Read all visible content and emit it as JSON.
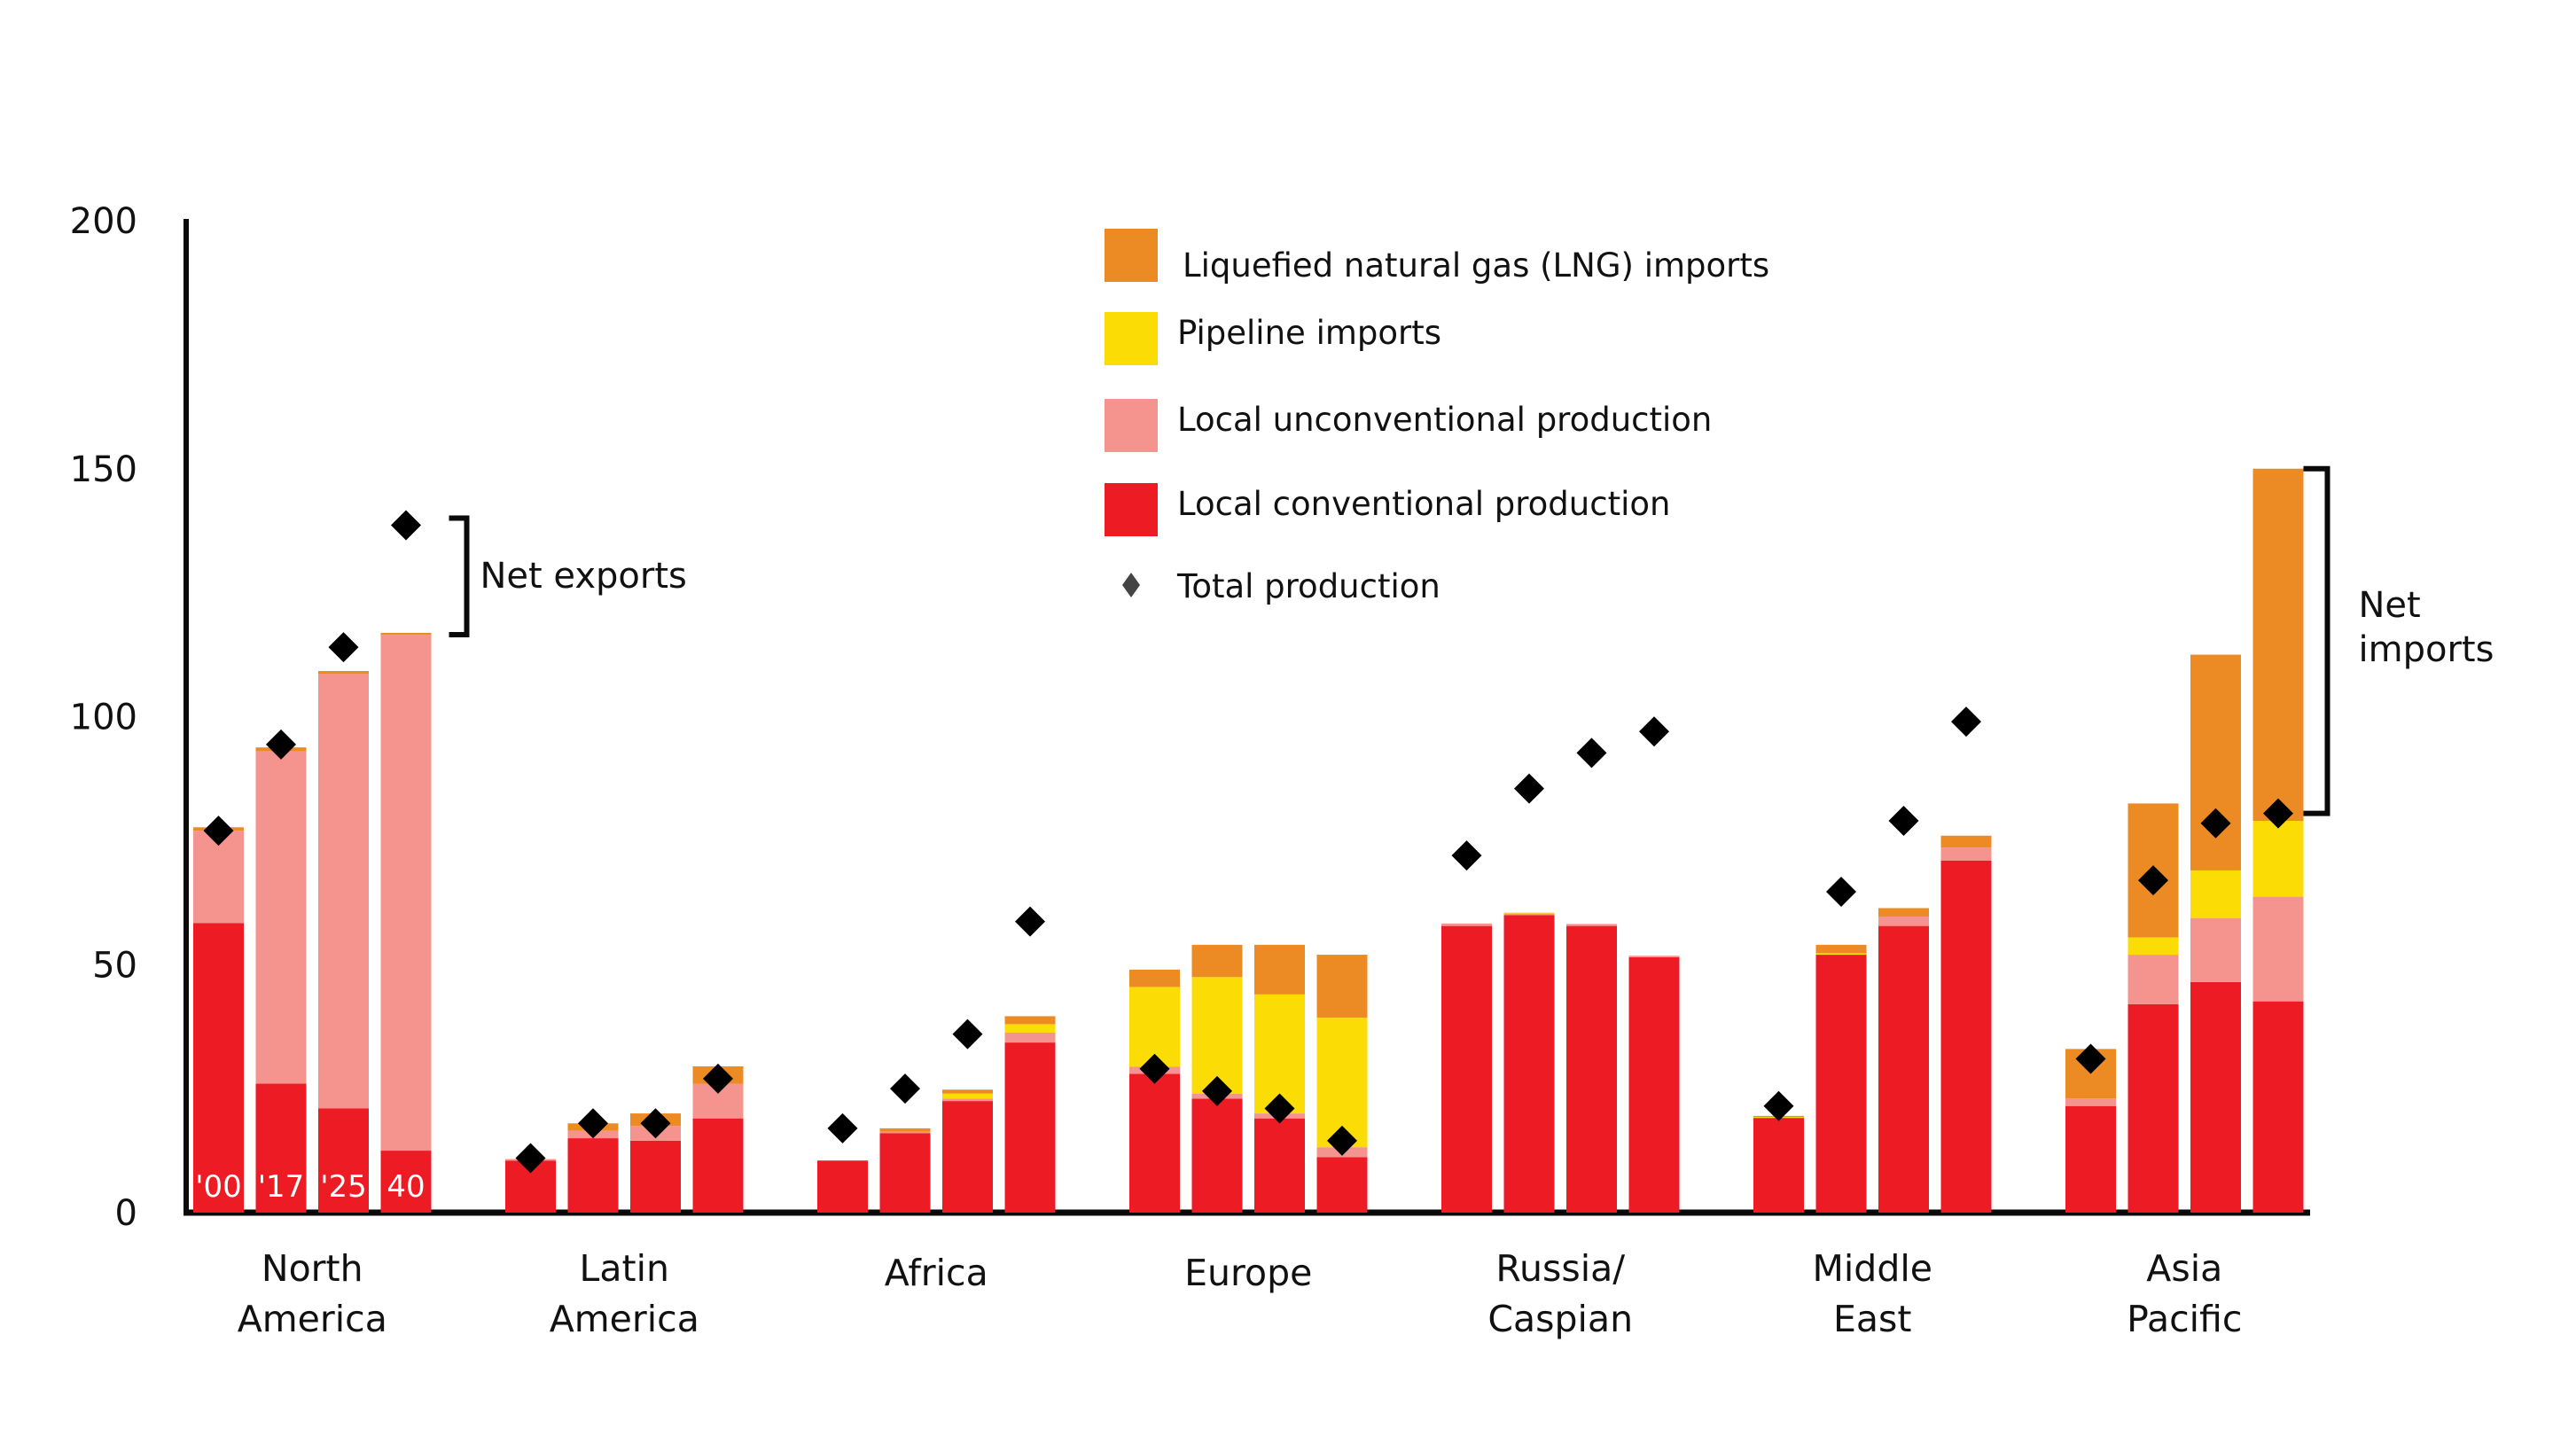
{
  "chart_data": {
    "type": "bar",
    "stacked": true,
    "title": "",
    "xlabel": "",
    "ylabel": "",
    "ylim": [
      0,
      200
    ],
    "yticks": [
      0,
      50,
      100,
      150,
      200
    ],
    "grid": false,
    "legend_position": "top-center",
    "colors": {
      "lng_imports": "#EC8B23",
      "pipeline_imports": "#FCDC05",
      "local_unconventional": "#F5948F",
      "local_conventional": "#ED1C24",
      "total_production": "#000000",
      "legend_marker": "#444444"
    },
    "legend": [
      {
        "key": "lng_imports",
        "label": "Liquefied natural gas (LNG) imports",
        "marker": "square"
      },
      {
        "key": "pipeline_imports",
        "label": "Pipeline imports",
        "marker": "square"
      },
      {
        "key": "local_unconventional",
        "label": "Local unconventional production",
        "marker": "square"
      },
      {
        "key": "local_conventional",
        "label": "Local conventional production",
        "marker": "square"
      },
      {
        "key": "total_production",
        "label": "Total production",
        "marker": "diamond"
      }
    ],
    "stack_order": [
      "local_conventional",
      "local_unconventional",
      "pipeline_imports",
      "lng_imports"
    ],
    "year_labels": [
      "'00",
      "'17",
      "'25",
      "40"
    ],
    "groups": [
      {
        "region": [
          "North",
          "America"
        ],
        "years": [
          "2000",
          "2017",
          "2025",
          "2040"
        ],
        "local_conventional": [
          58.4,
          26,
          21,
          12.5
        ],
        "local_unconventional": [
          18.6,
          67,
          87.6,
          104
        ],
        "pipeline_imports": [
          0,
          0,
          0,
          0
        ],
        "lng_imports": [
          0.7,
          0.8,
          0.6,
          0.4
        ],
        "total_production": [
          77,
          94.4,
          114,
          138.6
        ]
      },
      {
        "region": [
          "Latin",
          "America"
        ],
        "years": [
          "2000",
          "2017",
          "2025",
          "2040"
        ],
        "local_conventional": [
          10.5,
          15,
          14.5,
          19
        ],
        "local_unconventional": [
          0.3,
          1.5,
          3,
          7
        ],
        "pipeline_imports": [
          0,
          0,
          0,
          0
        ],
        "lng_imports": [
          0,
          1.5,
          2.5,
          3.5
        ],
        "total_production": [
          11,
          18,
          18,
          27
        ]
      },
      {
        "region": [
          "Africa"
        ],
        "years": [
          "2000",
          "2017",
          "2025",
          "2040"
        ],
        "local_conventional": [
          10.5,
          16,
          22.5,
          34.3
        ],
        "local_unconventional": [
          0,
          0.3,
          0.5,
          2
        ],
        "pipeline_imports": [
          0,
          0,
          1,
          1.7
        ],
        "lng_imports": [
          0,
          0.7,
          0.8,
          1.6
        ],
        "total_production": [
          17,
          25,
          36,
          58.7
        ]
      },
      {
        "region": [
          "Europe"
        ],
        "years": [
          "2000",
          "2017",
          "2025",
          "2040"
        ],
        "local_conventional": [
          28,
          23,
          19,
          11.2
        ],
        "local_unconventional": [
          1.4,
          1,
          1,
          2
        ],
        "pipeline_imports": [
          16.1,
          23.5,
          24,
          26.1
        ],
        "lng_imports": [
          3.5,
          6.5,
          10,
          12.7
        ],
        "total_production": [
          29,
          24.5,
          21,
          14.5
        ]
      },
      {
        "region": [
          "Russia/",
          "Caspian"
        ],
        "years": [
          "2000",
          "2017",
          "2025",
          "2040"
        ],
        "local_conventional": [
          57.8,
          60,
          57.8,
          51.5
        ],
        "local_unconventional": [
          0.5,
          0.3,
          0.4,
          0.3
        ],
        "pipeline_imports": [
          0,
          0.2,
          0,
          0
        ],
        "lng_imports": [
          0,
          0,
          0,
          0
        ],
        "total_production": [
          72,
          85.5,
          92.7,
          97
        ]
      },
      {
        "region": [
          "Middle",
          "East"
        ],
        "years": [
          "2000",
          "2017",
          "2025",
          "2040"
        ],
        "local_conventional": [
          19.1,
          52,
          57.8,
          71
        ],
        "local_unconventional": [
          0,
          0,
          1.9,
          2.6
        ],
        "pipeline_imports": [
          0.2,
          0.3,
          0,
          0
        ],
        "lng_imports": [
          0.2,
          1.7,
          1.7,
          2.4
        ],
        "total_production": [
          21.5,
          64.7,
          79,
          99
        ]
      },
      {
        "region": [
          "Asia",
          "Pacific"
        ],
        "years": [
          "2000",
          "2017",
          "2025",
          "2040"
        ],
        "local_conventional": [
          21.5,
          42,
          46.5,
          42.6
        ],
        "local_unconventional": [
          1.5,
          10,
          12.9,
          21.1
        ],
        "pipeline_imports": [
          0,
          3.5,
          9.6,
          15.3
        ],
        "lng_imports": [
          10,
          27,
          43.5,
          71
        ],
        "total_production": [
          31,
          67,
          78.5,
          80.5
        ]
      }
    ],
    "annotations": [
      {
        "text": [
          "Net exports"
        ],
        "bracket": "North America 2040: from bar top to total production"
      },
      {
        "text": [
          "Net",
          "imports"
        ],
        "bracket": "Asia Pacific 2040: from total production to bar top"
      }
    ]
  }
}
